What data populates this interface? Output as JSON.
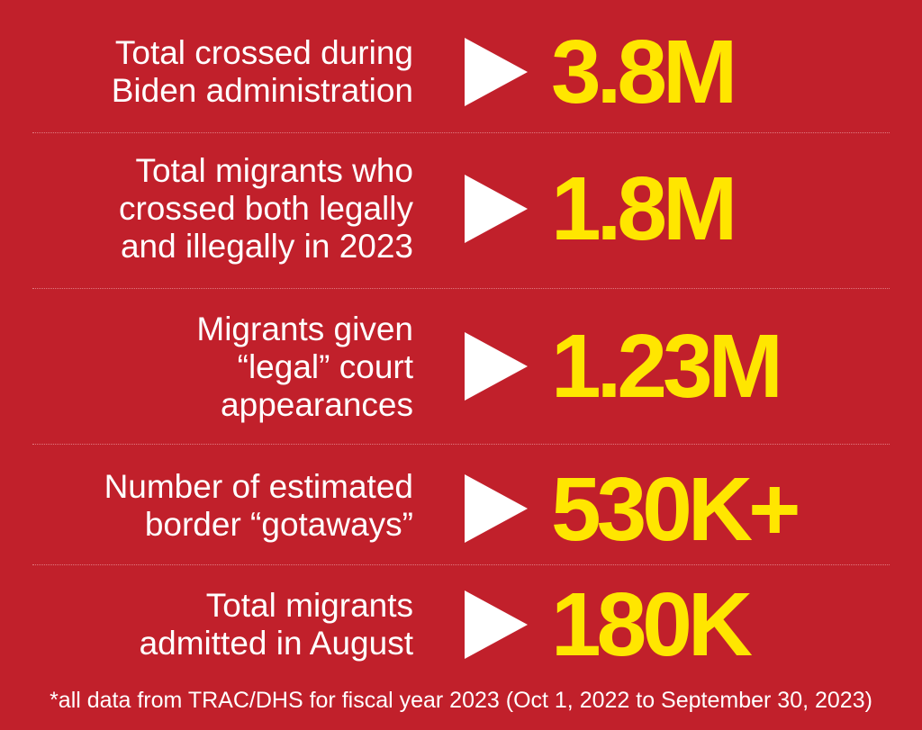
{
  "colors": {
    "background": "#c1202b",
    "label_text": "#ffffff",
    "value_text": "#ffe600",
    "arrow": "#ffffff"
  },
  "stats": [
    {
      "label_lines": [
        "Total crossed during",
        "Biden administration"
      ],
      "value": "3.8M",
      "icon": "play-arrow-icon"
    },
    {
      "label_lines": [
        "Total migrants who",
        "crossed both legally",
        "and illegally in 2023"
      ],
      "value": "1.8M",
      "icon": "play-arrow-icon"
    },
    {
      "label_lines": [
        "Migrants given",
        "“legal” court",
        "appearances"
      ],
      "value": "1.23M",
      "icon": "play-arrow-icon"
    },
    {
      "label_lines": [
        "Number of estimated",
        "border “gotaways”"
      ],
      "value": "530K+",
      "icon": "play-arrow-icon"
    },
    {
      "label_lines": [
        "Total migrants",
        "admitted in August"
      ],
      "value": "180K",
      "icon": "play-arrow-icon"
    }
  ],
  "footnote": "*all data from TRAC/DHS for fiscal year 2023 (Oct 1, 2022 to September 30, 2023)"
}
